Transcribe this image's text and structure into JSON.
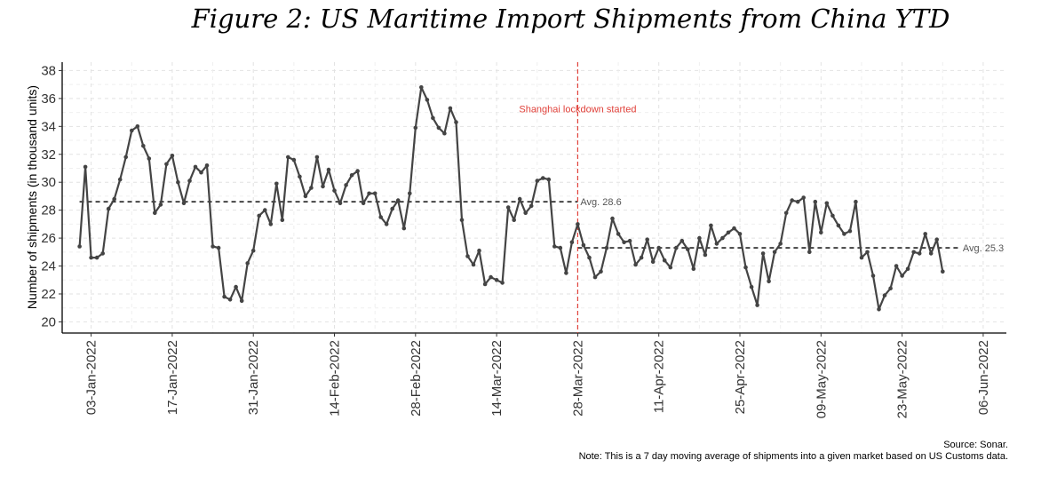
{
  "chart_data": {
    "type": "line",
    "title": "Figure 2: US Maritime Import Shipments from China YTD",
    "ylabel": "Number of shipments (in thousand units)",
    "xlabel": "",
    "ylim": [
      19.2,
      38.6
    ],
    "yticks": [
      20,
      22,
      24,
      26,
      28,
      30,
      32,
      34,
      36,
      38
    ],
    "x_start": "2021-12-29",
    "x_end": "2022-06-10",
    "x_ticks": [
      {
        "date": "2022-01-03",
        "label": "03-Jan-2022"
      },
      {
        "date": "2022-01-17",
        "label": "17-Jan-2022"
      },
      {
        "date": "2022-01-31",
        "label": "31-Jan-2022"
      },
      {
        "date": "2022-02-14",
        "label": "14-Feb-2022"
      },
      {
        "date": "2022-02-28",
        "label": "28-Feb-2022"
      },
      {
        "date": "2022-03-14",
        "label": "14-Mar-2022"
      },
      {
        "date": "2022-03-28",
        "label": "28-Mar-2022"
      },
      {
        "date": "2022-04-11",
        "label": "11-Apr-2022"
      },
      {
        "date": "2022-04-25",
        "label": "25-Apr-2022"
      },
      {
        "date": "2022-05-09",
        "label": "09-May-2022"
      },
      {
        "date": "2022-05-23",
        "label": "23-May-2022"
      },
      {
        "date": "2022-06-06",
        "label": "06-Jun-2022"
      }
    ],
    "grid": true,
    "series": [
      {
        "start_date": "2022-01-01",
        "color": "#444444",
        "values": [
          25.4,
          31.1,
          24.6,
          24.6,
          24.9,
          28.1,
          28.8,
          30.2,
          31.8,
          33.7,
          34.0,
          32.6,
          31.7,
          27.8,
          28.4,
          31.3,
          31.9,
          30.0,
          28.5,
          30.1,
          31.1,
          30.7,
          31.2,
          25.4,
          25.3,
          21.8,
          21.6,
          22.5,
          21.5,
          24.2,
          25.1,
          27.6,
          28.0,
          27.0,
          29.9,
          27.3,
          31.8,
          31.6,
          30.4,
          29.0,
          29.6,
          31.8,
          29.7,
          30.9,
          29.4,
          28.5,
          29.8,
          30.5,
          30.8,
          28.5,
          29.2,
          29.2,
          27.5,
          27.0,
          28.1,
          28.7,
          26.7,
          29.2,
          33.9,
          36.8,
          35.9,
          34.6,
          33.9,
          33.5,
          35.3,
          34.3,
          27.3,
          24.7,
          24.1,
          25.1,
          22.7,
          23.2,
          23.0,
          22.8,
          28.2,
          27.3,
          28.8,
          27.8,
          28.3,
          30.1,
          30.3,
          30.2,
          25.4,
          25.3,
          23.5,
          25.7,
          27.0,
          25.5,
          24.6,
          23.2,
          23.6,
          25.3,
          27.4,
          26.3,
          25.7,
          25.8,
          24.1,
          24.6,
          25.9,
          24.3,
          25.3,
          24.4,
          23.9,
          25.3,
          25.8,
          25.2,
          23.8,
          26.0,
          24.8,
          26.9,
          25.6,
          26.0,
          26.4,
          26.7,
          26.3,
          23.9,
          22.5,
          21.2,
          24.9,
          22.9,
          25.0,
          25.6,
          27.8,
          28.7,
          28.6,
          28.9,
          25.0,
          28.6,
          26.4,
          28.5,
          27.6,
          26.9,
          26.3,
          26.5,
          28.6,
          24.6,
          25.0,
          23.3,
          20.9,
          21.9,
          22.4,
          24.0,
          23.3,
          23.8,
          25.0,
          24.9,
          26.3,
          24.9,
          25.9,
          23.6
        ]
      }
    ],
    "annotations": [
      {
        "type": "vline",
        "date": "2022-03-28",
        "color": "#e0413a",
        "text": "Shanghai lockdown started"
      }
    ],
    "avg_lines": [
      {
        "from": "2022-01-01",
        "to": "2022-03-28",
        "value": 28.6,
        "text": "Avg. 28.6"
      },
      {
        "from": "2022-03-28",
        "to": "2022-06-02",
        "value": 25.3,
        "text": "Avg. 25.3"
      }
    ],
    "source": "Source: Sonar.",
    "note": "Note: This is a 7 day moving average of shipments into a given market based on US Customs data."
  }
}
